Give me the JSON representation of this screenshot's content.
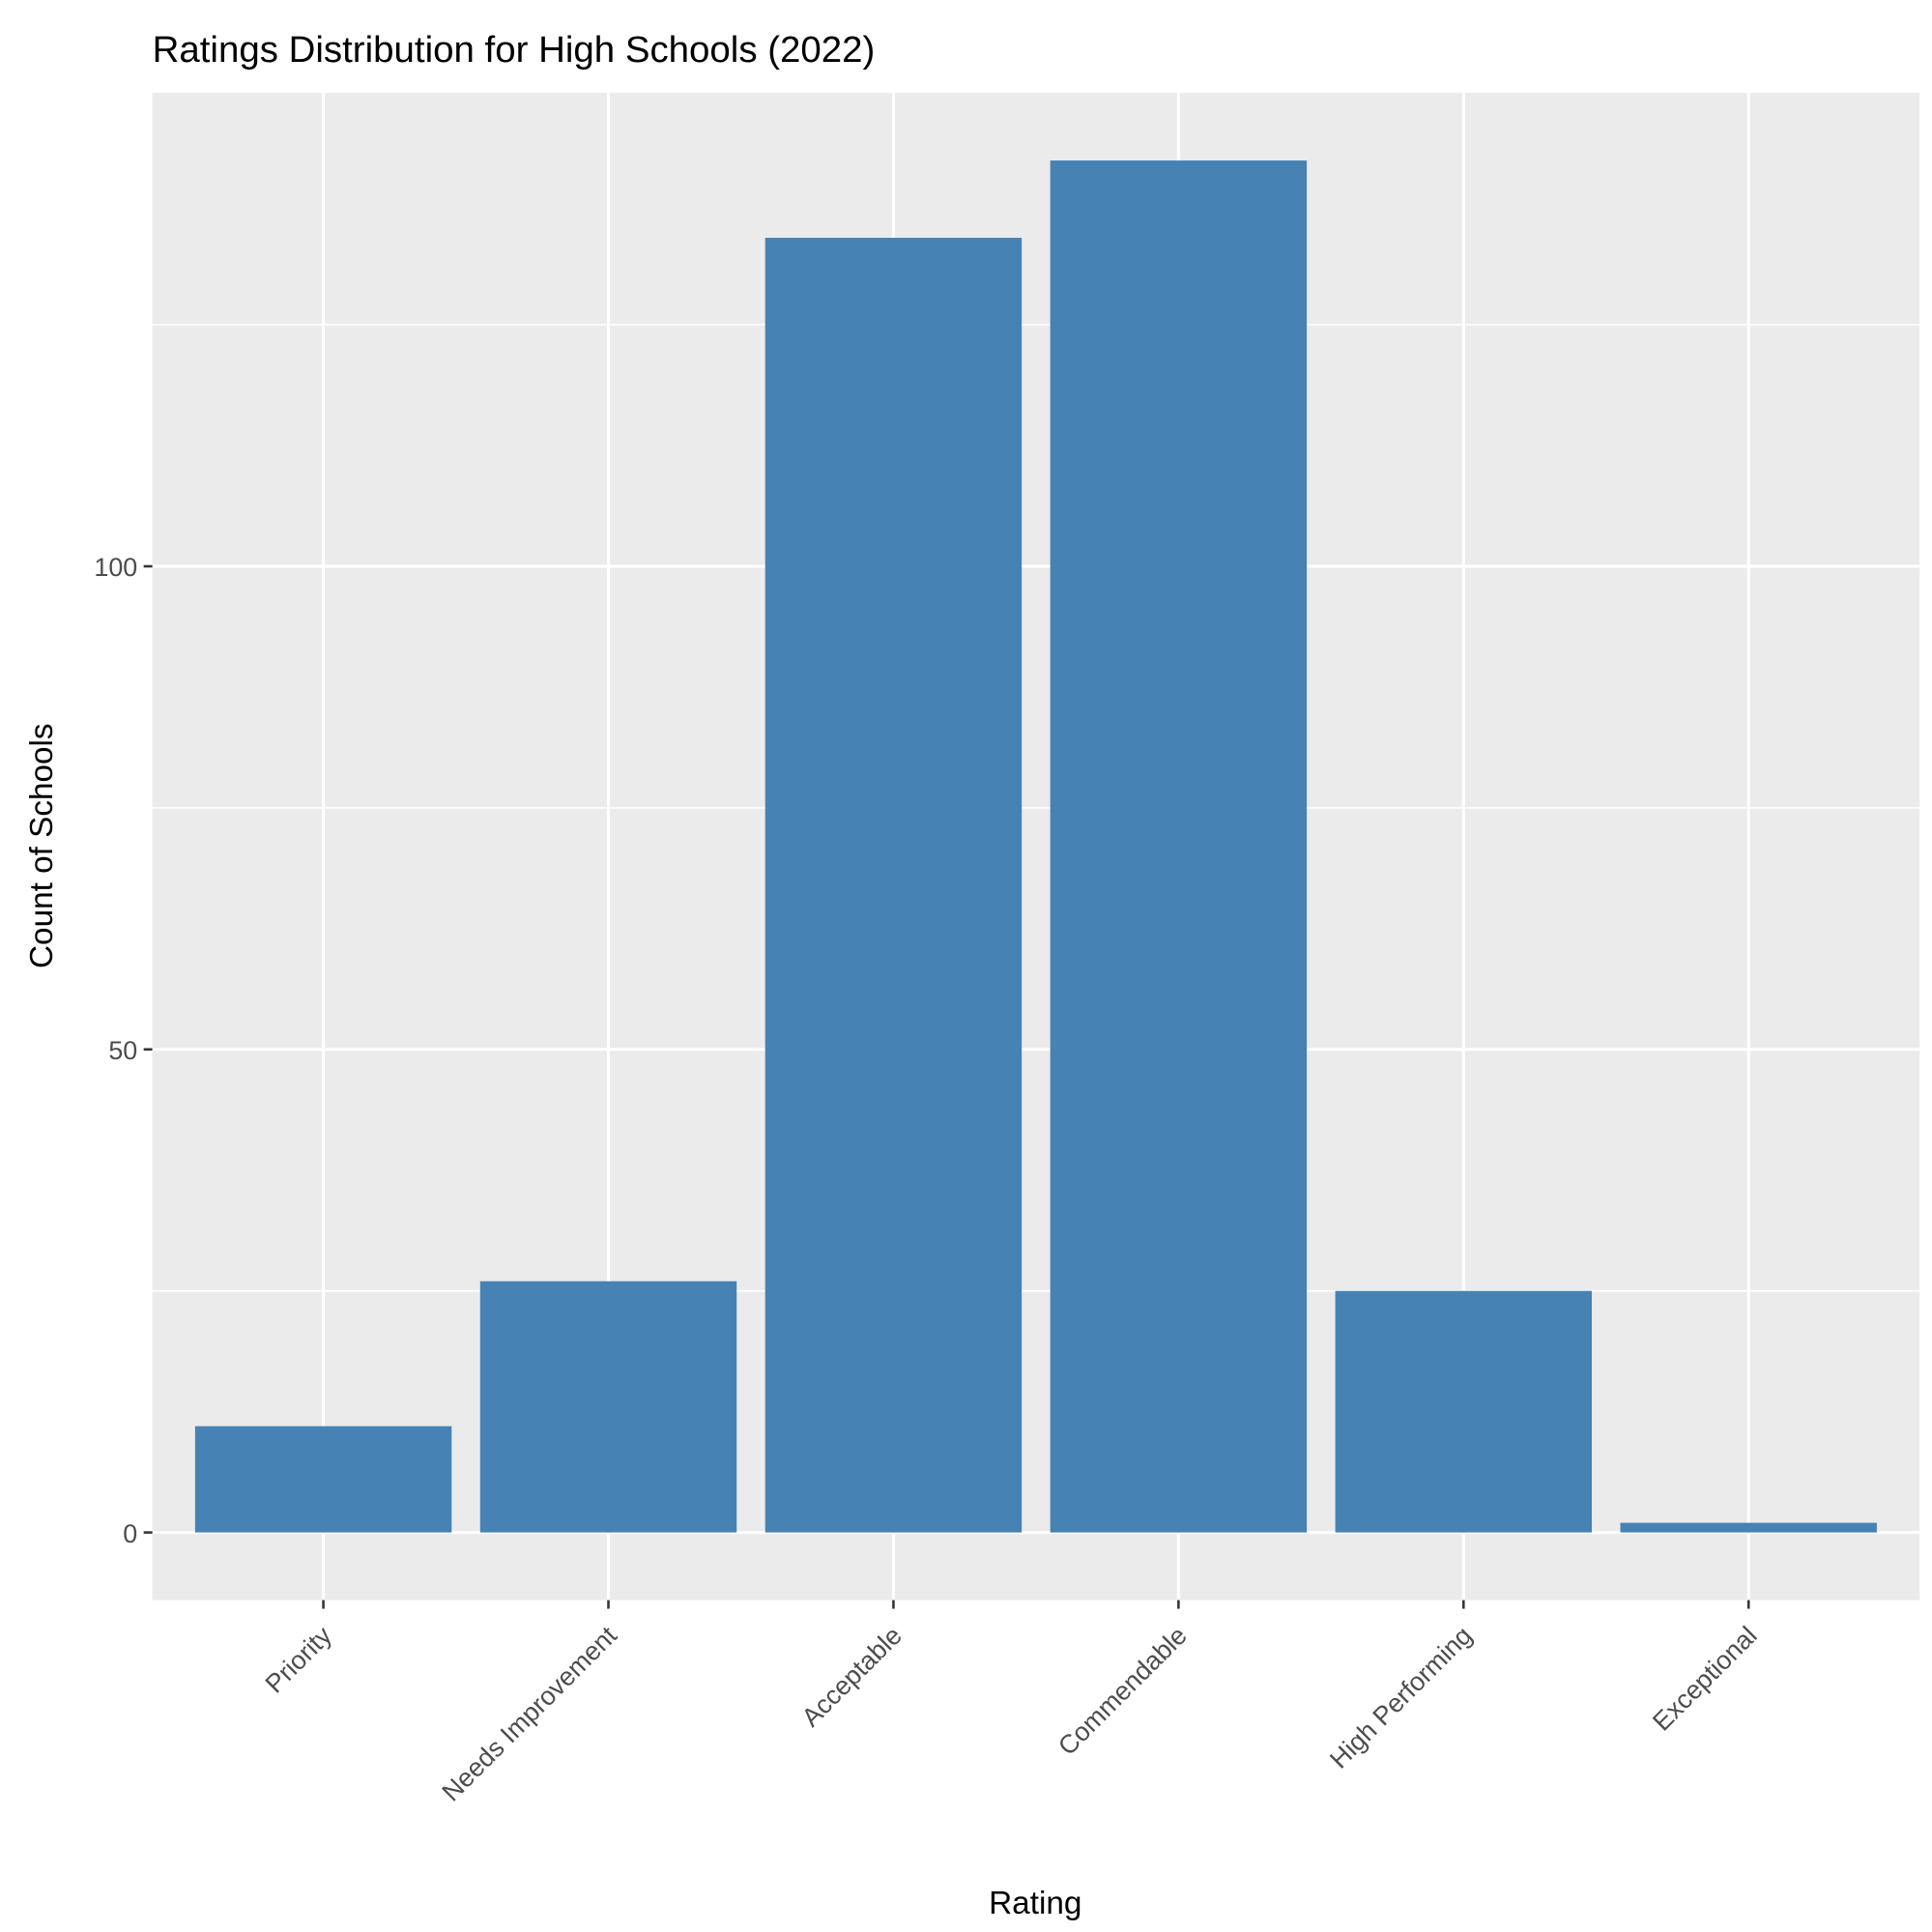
{
  "chart_data": {
    "type": "bar",
    "title": "Ratings Distribution for High Schools (2022)",
    "xlabel": "Rating",
    "ylabel": "Count of Schools",
    "categories": [
      "Priority",
      "Needs Improvement",
      "Acceptable",
      "Commendable",
      "High Performing",
      "Exceptional"
    ],
    "values": [
      11,
      26,
      134,
      142,
      25,
      1
    ],
    "yticks": [
      0,
      50,
      100
    ],
    "ytick_labels": [
      "0",
      "50",
      "100"
    ],
    "ylim": [
      -7,
      149
    ],
    "grid": true,
    "bar_color": "#4682B4",
    "panel_color": "#EBEBEB"
  }
}
